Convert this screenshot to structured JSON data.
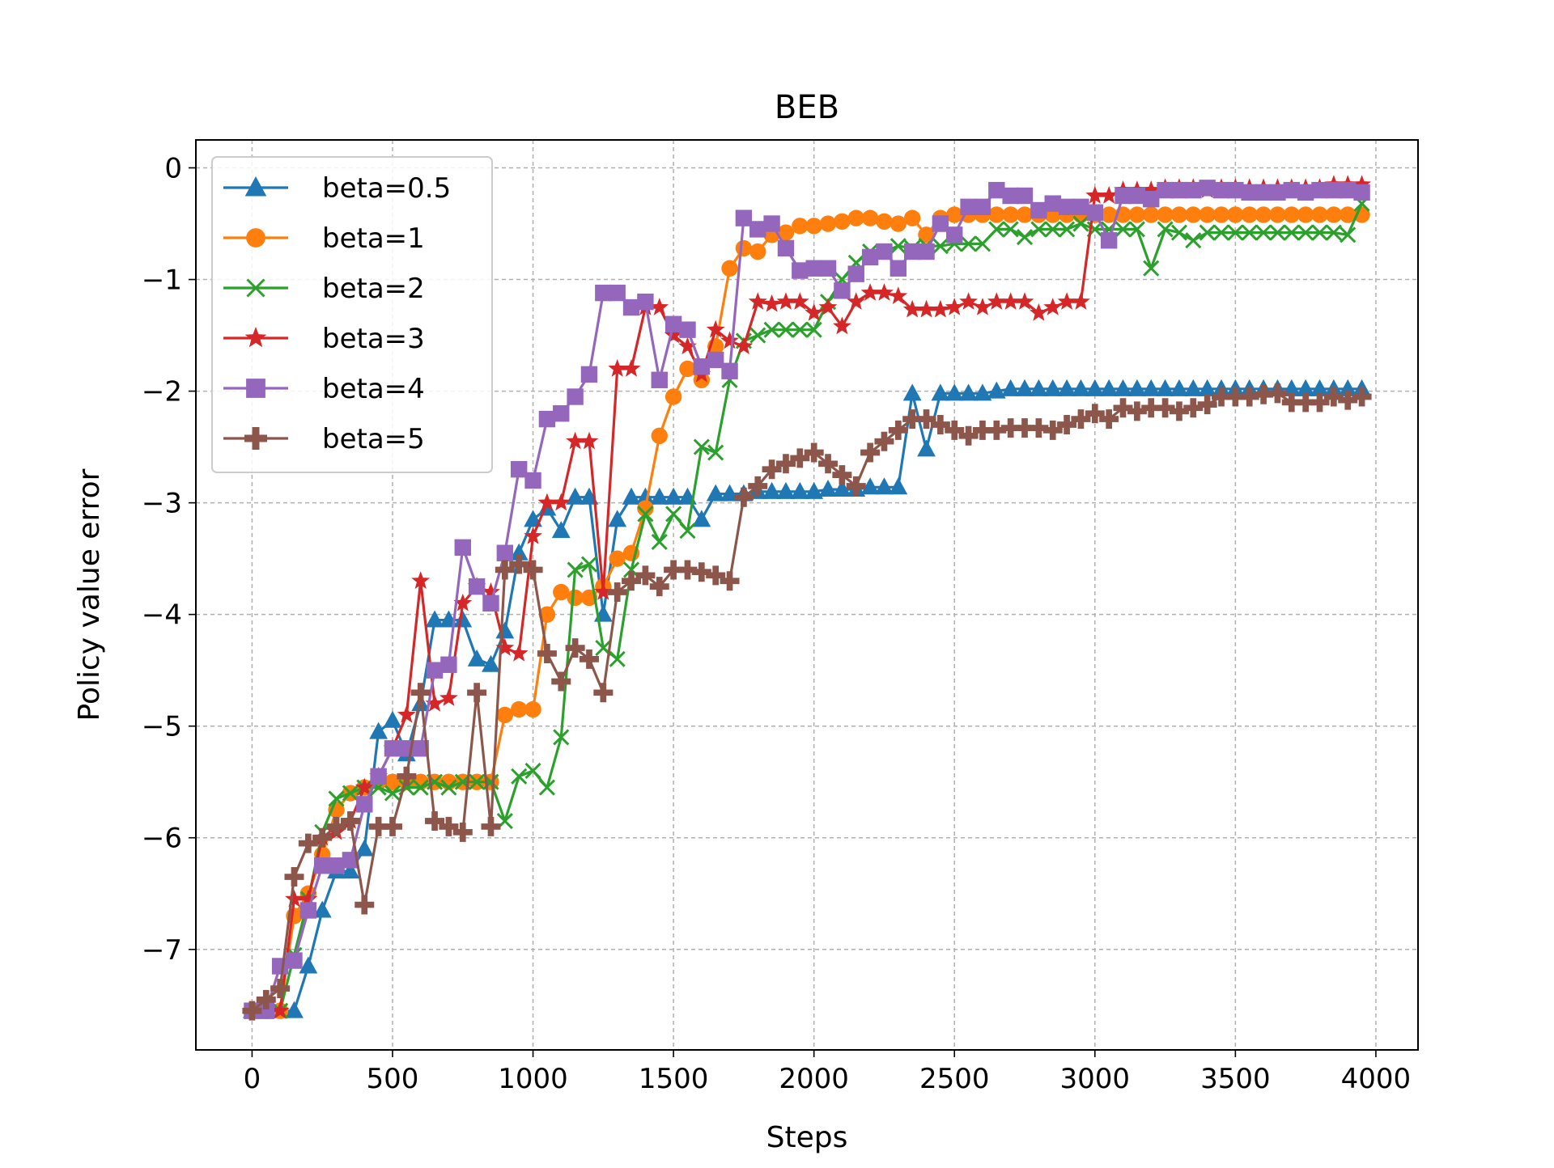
{
  "chart_data": {
    "type": "line",
    "title": "BEB",
    "xlabel": "Steps",
    "ylabel": "Policy value error",
    "xlim": [
      -200,
      4150
    ],
    "ylim": [
      -7.9,
      0.25
    ],
    "xticks": [
      0,
      500,
      1000,
      1500,
      2000,
      2500,
      3000,
      3500,
      4000
    ],
    "yticks": [
      0,
      -1,
      -2,
      -3,
      -4,
      -5,
      -6,
      -7
    ],
    "xtick_labels": [
      "0",
      "500",
      "1000",
      "1500",
      "2000",
      "2500",
      "3000",
      "3500",
      "4000"
    ],
    "ytick_labels": [
      "0",
      "−1",
      "−2",
      "−3",
      "−4",
      "−5",
      "−6",
      "−7"
    ],
    "grid": true,
    "legend_position": "upper-left",
    "series": [
      {
        "name": "beta=0.5",
        "color": "#1f77b4",
        "marker": "triangle",
        "x": [
          0,
          50,
          100,
          150,
          200,
          250,
          300,
          350,
          400,
          450,
          500,
          550,
          600,
          650,
          700,
          750,
          800,
          850,
          900,
          950,
          1000,
          1050,
          1100,
          1150,
          1200,
          1250,
          1300,
          1350,
          1400,
          1450,
          1500,
          1550,
          1600,
          1650,
          1700,
          1750,
          1800,
          1850,
          1900,
          1950,
          2000,
          2050,
          2100,
          2150,
          2200,
          2250,
          2300,
          2350,
          2400,
          2450,
          2500,
          2550,
          2600,
          2650,
          2700,
          2750,
          2800,
          2850,
          2900,
          2950,
          3000,
          3050,
          3100,
          3150,
          3200,
          3250,
          3300,
          3350,
          3400,
          3450,
          3500,
          3550,
          3600,
          3650,
          3700,
          3750,
          3800,
          3850,
          3900,
          3950
        ],
        "y": [
          -7.55,
          -7.55,
          -7.55,
          -7.55,
          -7.15,
          -6.65,
          -6.3,
          -6.3,
          -6.1,
          -5.05,
          -4.95,
          -5.25,
          -4.8,
          -4.05,
          -4.05,
          -4.05,
          -4.4,
          -4.45,
          -4.15,
          -3.45,
          -3.15,
          -3.05,
          -3.25,
          -2.95,
          -2.95,
          -4.0,
          -3.15,
          -2.95,
          -2.95,
          -2.95,
          -2.95,
          -2.95,
          -3.15,
          -2.92,
          -2.92,
          -2.92,
          -2.9,
          -2.9,
          -2.9,
          -2.9,
          -2.9,
          -2.88,
          -2.88,
          -2.88,
          -2.86,
          -2.86,
          -2.86,
          -2.02,
          -2.52,
          -2.02,
          -2.02,
          -2.02,
          -2.02,
          -2.0,
          -1.98,
          -1.98,
          -1.98,
          -1.98,
          -1.98,
          -1.98,
          -1.98,
          -1.98,
          -1.98,
          -1.98,
          -1.98,
          -1.98,
          -1.98,
          -1.98,
          -1.98,
          -1.98,
          -1.98,
          -1.98,
          -1.98,
          -1.98,
          -1.98,
          -1.98,
          -1.98,
          -1.98,
          -1.98,
          -1.98
        ]
      },
      {
        "name": "beta=1",
        "color": "#ff7f0e",
        "marker": "circle",
        "x": [
          0,
          50,
          100,
          150,
          200,
          250,
          300,
          350,
          400,
          450,
          500,
          550,
          600,
          650,
          700,
          750,
          800,
          850,
          900,
          950,
          1000,
          1050,
          1100,
          1150,
          1200,
          1250,
          1300,
          1350,
          1400,
          1450,
          1500,
          1550,
          1600,
          1650,
          1700,
          1750,
          1800,
          1850,
          1900,
          1950,
          2000,
          2050,
          2100,
          2150,
          2200,
          2250,
          2300,
          2350,
          2400,
          2450,
          2500,
          2550,
          2600,
          2650,
          2700,
          2750,
          2800,
          2850,
          2900,
          2950,
          3000,
          3050,
          3100,
          3150,
          3200,
          3250,
          3300,
          3350,
          3400,
          3450,
          3500,
          3550,
          3600,
          3650,
          3700,
          3750,
          3800,
          3850,
          3900,
          3950
        ],
        "y": [
          -7.55,
          -7.55,
          -7.55,
          -6.7,
          -6.5,
          -6.15,
          -5.75,
          -5.6,
          -5.55,
          -5.5,
          -5.5,
          -5.5,
          -5.5,
          -5.5,
          -5.5,
          -5.5,
          -5.5,
          -5.5,
          -4.9,
          -4.85,
          -4.85,
          -4.0,
          -3.8,
          -3.85,
          -3.85,
          -3.75,
          -3.5,
          -3.45,
          -3.05,
          -2.4,
          -2.05,
          -1.8,
          -1.9,
          -1.6,
          -0.9,
          -0.72,
          -0.75,
          -0.6,
          -0.58,
          -0.52,
          -0.52,
          -0.5,
          -0.48,
          -0.45,
          -0.45,
          -0.48,
          -0.5,
          -0.45,
          -0.6,
          -0.45,
          -0.42,
          -0.42,
          -0.42,
          -0.42,
          -0.42,
          -0.42,
          -0.42,
          -0.42,
          -0.42,
          -0.42,
          -0.42,
          -0.42,
          -0.42,
          -0.42,
          -0.42,
          -0.42,
          -0.42,
          -0.42,
          -0.42,
          -0.42,
          -0.42,
          -0.42,
          -0.42,
          -0.42,
          -0.42,
          -0.42,
          -0.42,
          -0.42,
          -0.42,
          -0.42
        ]
      },
      {
        "name": "beta=2",
        "color": "#2ca02c",
        "marker": "x",
        "x": [
          0,
          50,
          100,
          150,
          200,
          250,
          300,
          350,
          400,
          450,
          500,
          550,
          600,
          650,
          700,
          750,
          800,
          850,
          900,
          950,
          1000,
          1050,
          1100,
          1150,
          1200,
          1250,
          1300,
          1350,
          1400,
          1450,
          1500,
          1550,
          1600,
          1650,
          1700,
          1750,
          1800,
          1850,
          1900,
          1950,
          2000,
          2050,
          2100,
          2150,
          2200,
          2250,
          2300,
          2350,
          2400,
          2450,
          2500,
          2550,
          2600,
          2650,
          2700,
          2750,
          2800,
          2850,
          2900,
          2950,
          3000,
          3050,
          3100,
          3150,
          3200,
          3250,
          3300,
          3350,
          3400,
          3450,
          3500,
          3550,
          3600,
          3650,
          3700,
          3750,
          3800,
          3850,
          3900,
          3950
        ],
        "y": [
          -7.55,
          -7.55,
          -7.55,
          -7.05,
          -6.55,
          -5.95,
          -5.65,
          -5.6,
          -5.55,
          -5.55,
          -5.6,
          -5.55,
          -5.55,
          -5.5,
          -5.55,
          -5.5,
          -5.5,
          -5.5,
          -5.85,
          -5.45,
          -5.4,
          -5.55,
          -5.1,
          -3.6,
          -3.55,
          -4.3,
          -4.4,
          -3.6,
          -3.1,
          -3.35,
          -3.1,
          -3.25,
          -2.5,
          -2.55,
          -1.9,
          -1.55,
          -1.5,
          -1.45,
          -1.45,
          -1.45,
          -1.45,
          -1.2,
          -1.0,
          -0.85,
          -0.75,
          -0.75,
          -0.7,
          -0.72,
          -0.7,
          -0.7,
          -0.68,
          -0.68,
          -0.68,
          -0.55,
          -0.55,
          -0.62,
          -0.55,
          -0.55,
          -0.55,
          -0.5,
          -0.55,
          -0.55,
          -0.55,
          -0.55,
          -0.9,
          -0.55,
          -0.58,
          -0.65,
          -0.58,
          -0.58,
          -0.58,
          -0.58,
          -0.58,
          -0.58,
          -0.58,
          -0.58,
          -0.58,
          -0.58,
          -0.6,
          -0.32
        ]
      },
      {
        "name": "beta=3",
        "color": "#d62728",
        "marker": "star",
        "x": [
          0,
          50,
          100,
          150,
          200,
          250,
          300,
          350,
          400,
          450,
          500,
          550,
          600,
          650,
          700,
          750,
          800,
          850,
          900,
          950,
          1000,
          1050,
          1100,
          1150,
          1200,
          1250,
          1300,
          1350,
          1400,
          1450,
          1500,
          1550,
          1600,
          1650,
          1700,
          1750,
          1800,
          1850,
          1900,
          1950,
          2000,
          2050,
          2100,
          2150,
          2200,
          2250,
          2300,
          2350,
          2400,
          2450,
          2500,
          2550,
          2600,
          2650,
          2700,
          2750,
          2800,
          2850,
          2900,
          2950,
          3000,
          3050,
          3100,
          3150,
          3200,
          3250,
          3300,
          3350,
          3400,
          3450,
          3500,
          3550,
          3600,
          3650,
          3700,
          3750,
          3800,
          3850,
          3900,
          3950
        ],
        "y": [
          -7.55,
          -7.55,
          -7.55,
          -6.55,
          -6.55,
          -6.0,
          -5.95,
          -5.85,
          -5.55,
          -5.45,
          -5.2,
          -4.9,
          -3.7,
          -4.8,
          -4.75,
          -3.9,
          -3.75,
          -3.8,
          -4.3,
          -4.35,
          -3.3,
          -3.0,
          -3.0,
          -2.45,
          -2.45,
          -3.8,
          -1.8,
          -1.8,
          -1.25,
          -1.25,
          -1.5,
          -1.6,
          -1.85,
          -1.45,
          -1.55,
          -1.6,
          -1.2,
          -1.22,
          -1.2,
          -1.2,
          -1.3,
          -1.25,
          -1.42,
          -1.2,
          -1.12,
          -1.12,
          -1.15,
          -1.27,
          -1.27,
          -1.27,
          -1.25,
          -1.2,
          -1.25,
          -1.2,
          -1.2,
          -1.2,
          -1.3,
          -1.25,
          -1.2,
          -1.2,
          -0.25,
          -0.25,
          -0.2,
          -0.2,
          -0.2,
          -0.18,
          -0.18,
          -0.18,
          -0.2,
          -0.18,
          -0.18,
          -0.18,
          -0.18,
          -0.18,
          -0.18,
          -0.18,
          -0.18,
          -0.15,
          -0.15,
          -0.15
        ]
      },
      {
        "name": "beta=4",
        "color": "#9467bd",
        "marker": "square",
        "x": [
          0,
          50,
          100,
          150,
          200,
          250,
          300,
          350,
          400,
          450,
          500,
          550,
          600,
          650,
          700,
          750,
          800,
          850,
          900,
          950,
          1000,
          1050,
          1100,
          1150,
          1200,
          1250,
          1300,
          1350,
          1400,
          1450,
          1500,
          1550,
          1600,
          1650,
          1700,
          1750,
          1800,
          1850,
          1900,
          1950,
          2000,
          2050,
          2100,
          2150,
          2200,
          2250,
          2300,
          2350,
          2400,
          2450,
          2500,
          2550,
          2600,
          2650,
          2700,
          2750,
          2800,
          2850,
          2900,
          2950,
          3000,
          3050,
          3100,
          3150,
          3200,
          3250,
          3300,
          3350,
          3400,
          3450,
          3500,
          3550,
          3600,
          3650,
          3700,
          3750,
          3800,
          3850,
          3900,
          3950
        ],
        "y": [
          -7.55,
          -7.55,
          -7.15,
          -7.1,
          -6.65,
          -6.25,
          -6.25,
          -6.2,
          -5.7,
          -5.45,
          -5.2,
          -5.2,
          -5.2,
          -4.5,
          -4.45,
          -3.4,
          -3.75,
          -3.9,
          -3.45,
          -2.7,
          -2.8,
          -2.25,
          -2.2,
          -2.05,
          -1.85,
          -1.12,
          -1.12,
          -1.25,
          -1.2,
          -1.9,
          -1.4,
          -1.45,
          -1.78,
          -1.72,
          -1.82,
          -0.45,
          -0.55,
          -0.5,
          -0.72,
          -0.92,
          -0.9,
          -0.9,
          -1.1,
          -0.95,
          -0.8,
          -0.75,
          -0.9,
          -0.75,
          -0.75,
          -0.5,
          -0.6,
          -0.35,
          -0.35,
          -0.2,
          -0.25,
          -0.25,
          -0.38,
          -0.32,
          -0.35,
          -0.35,
          -0.4,
          -0.65,
          -0.25,
          -0.25,
          -0.28,
          -0.2,
          -0.2,
          -0.2,
          -0.18,
          -0.2,
          -0.2,
          -0.22,
          -0.22,
          -0.22,
          -0.2,
          -0.22,
          -0.2,
          -0.2,
          -0.2,
          -0.22
        ]
      },
      {
        "name": "beta=5",
        "color": "#8c564b",
        "marker": "plus",
        "x": [
          0,
          50,
          100,
          150,
          200,
          250,
          300,
          350,
          400,
          450,
          500,
          550,
          600,
          650,
          700,
          750,
          800,
          850,
          900,
          950,
          1000,
          1050,
          1100,
          1150,
          1200,
          1250,
          1300,
          1350,
          1400,
          1450,
          1500,
          1550,
          1600,
          1650,
          1700,
          1750,
          1800,
          1850,
          1900,
          1950,
          2000,
          2050,
          2100,
          2150,
          2200,
          2250,
          2300,
          2350,
          2400,
          2450,
          2500,
          2550,
          2600,
          2650,
          2700,
          2750,
          2800,
          2850,
          2900,
          2950,
          3000,
          3050,
          3100,
          3150,
          3200,
          3250,
          3300,
          3350,
          3400,
          3450,
          3500,
          3550,
          3600,
          3650,
          3700,
          3750,
          3800,
          3850,
          3900,
          3950
        ],
        "y": [
          -7.55,
          -7.45,
          -7.35,
          -6.35,
          -6.05,
          -6.0,
          -5.9,
          -5.85,
          -6.6,
          -5.9,
          -5.9,
          -5.45,
          -4.7,
          -5.85,
          -5.9,
          -5.95,
          -4.7,
          -5.9,
          -3.6,
          -3.55,
          -3.6,
          -4.35,
          -4.6,
          -4.3,
          -4.4,
          -4.7,
          -3.8,
          -3.7,
          -3.65,
          -3.75,
          -3.6,
          -3.6,
          -3.62,
          -3.65,
          -3.7,
          -2.95,
          -2.85,
          -2.7,
          -2.65,
          -2.6,
          -2.55,
          -2.65,
          -2.75,
          -2.85,
          -2.55,
          -2.45,
          -2.35,
          -2.25,
          -2.25,
          -2.3,
          -2.35,
          -2.4,
          -2.35,
          -2.35,
          -2.33,
          -2.33,
          -2.33,
          -2.35,
          -2.3,
          -2.25,
          -2.2,
          -2.25,
          -2.15,
          -2.18,
          -2.15,
          -2.15,
          -2.18,
          -2.15,
          -2.12,
          -2.05,
          -2.05,
          -2.05,
          -2.03,
          -2.02,
          -2.1,
          -2.1,
          -2.1,
          -2.05,
          -2.08,
          -2.05
        ]
      }
    ]
  }
}
